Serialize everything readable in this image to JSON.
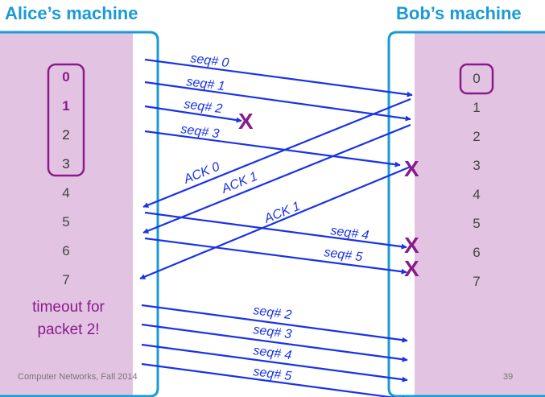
{
  "header": {
    "left_title": "Alice’s machine",
    "right_title": "Bob’s machine"
  },
  "sender": {
    "numbers": [
      "0",
      "1",
      "2",
      "3",
      "4",
      "5",
      "6",
      "7"
    ],
    "window": [
      "0",
      "1",
      "2",
      "3"
    ]
  },
  "receiver": {
    "numbers": [
      "0",
      "1",
      "2",
      "3",
      "4",
      "5",
      "6",
      "7"
    ],
    "window": [
      "0"
    ]
  },
  "messages": {
    "seq0": "seq# 0",
    "seq1": "seq# 1",
    "seq2": "seq# 2",
    "seq3": "seq# 3",
    "ack0": "ACK 0",
    "ack1a": "ACK 1",
    "ack1b": "ACK 1",
    "seq4": "seq# 4",
    "seq5": "seq# 5",
    "rseq2": "seq# 2",
    "rseq3": "seq# 3",
    "rseq4": "seq# 4",
    "rseq5": "seq# 5"
  },
  "loss_marker": "X",
  "timeout": {
    "line1": "timeout for",
    "line2": "packet 2!"
  },
  "footer": {
    "course": "Computer Networks, Fall 2014",
    "page": "39"
  },
  "colors": {
    "accent": "#1a9ad6",
    "arrow": "#1a33e6",
    "window_border": "#8b1a8b",
    "background_panel": "#e2c4e2"
  }
}
